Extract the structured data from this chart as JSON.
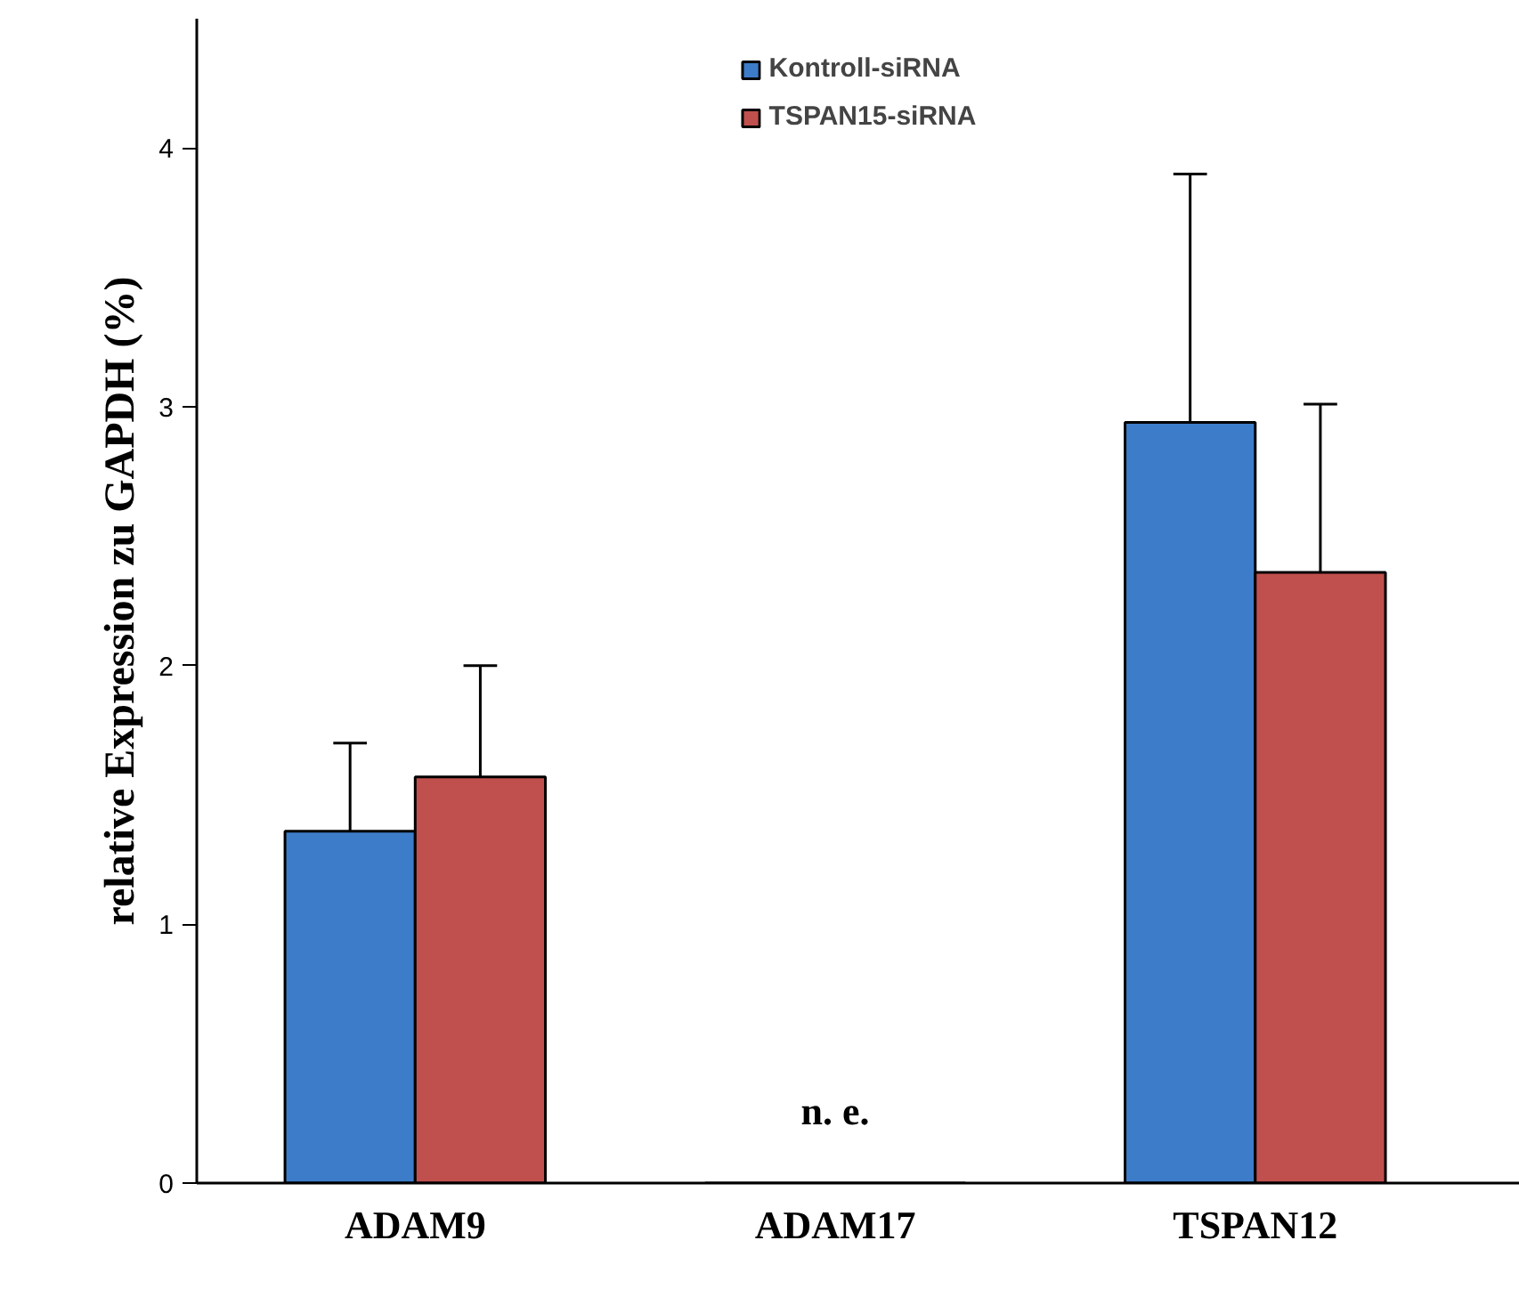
{
  "chart_data": {
    "type": "bar",
    "ylabel": "relative Expression zu GAPDH (%)",
    "categories": [
      "ADAM9",
      "ADAM17",
      "TSPAN12"
    ],
    "series": [
      {
        "name": "Kontroll-siRNA",
        "color": "#3d7cc9",
        "values": [
          1.36,
          0,
          2.94
        ],
        "errors": [
          [
            1.36,
            1.7
          ],
          null,
          [
            2.94,
            3.9
          ]
        ]
      },
      {
        "name": "TSPAN15-siRNA",
        "color": "#c0504d",
        "values": [
          1.57,
          0,
          2.36
        ],
        "errors": [
          [
            1.57,
            2.0
          ],
          null,
          [
            2.36,
            3.01
          ]
        ]
      }
    ],
    "ylim": [
      0,
      4.5
    ],
    "yticks": [
      0,
      1,
      2,
      3,
      4
    ],
    "annotations": [
      {
        "text": "n. e.",
        "x": "ADAM17",
        "y": 0
      }
    ],
    "legend": "top",
    "grid": false
  }
}
